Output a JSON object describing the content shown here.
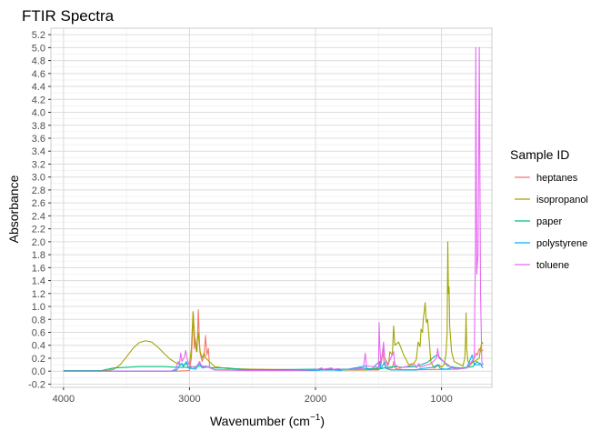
{
  "chart_data": {
    "type": "line",
    "title": "FTIR Spectra",
    "xlabel_main": "Wavenumber (cm",
    "xlabel_sup": "−1",
    "xlabel_close": ")",
    "ylabel": "Absorbance",
    "x_reversed": true,
    "xlim": [
      4100,
      600
    ],
    "ylim": [
      -0.25,
      5.3
    ],
    "x_ticks": [
      4000,
      3000,
      2000,
      1000
    ],
    "x_tick_labels": [
      "4000",
      "3000",
      "2000",
      "1000"
    ],
    "y_ticks": [
      -0.2,
      0.0,
      0.2,
      0.4,
      0.6,
      0.8,
      1.0,
      1.2,
      1.4,
      1.6,
      1.8,
      2.0,
      2.2,
      2.4,
      2.6,
      2.8,
      3.0,
      3.2,
      3.4,
      3.6,
      3.8,
      4.0,
      4.2,
      4.4,
      4.6,
      4.8,
      5.0,
      5.2
    ],
    "y_tick_labels": [
      "-0.2",
      "0.0",
      "0.2",
      "0.4",
      "0.6",
      "0.8",
      "1.0",
      "1.2",
      "1.4",
      "1.6",
      "1.8",
      "2.0",
      "2.2",
      "2.4",
      "2.6",
      "2.8",
      "3.0",
      "3.2",
      "3.4",
      "3.6",
      "3.8",
      "4.0",
      "4.2",
      "4.4",
      "4.6",
      "4.8",
      "5.0",
      "5.2"
    ],
    "grid": true,
    "legend_title": "Sample ID",
    "legend_position": "right",
    "series": [
      {
        "name": "heptanes",
        "color": "#F8766D",
        "points": [
          [
            4000,
            0.0
          ],
          [
            3100,
            0.0
          ],
          [
            3000,
            0.01
          ],
          [
            2985,
            0.2
          ],
          [
            2970,
            0.9
          ],
          [
            2962,
            0.35
          ],
          [
            2955,
            0.5
          ],
          [
            2940,
            0.3
          ],
          [
            2930,
            0.95
          ],
          [
            2918,
            0.3
          ],
          [
            2900,
            0.15
          ],
          [
            2885,
            0.22
          ],
          [
            2873,
            0.55
          ],
          [
            2862,
            0.25
          ],
          [
            2850,
            0.35
          ],
          [
            2840,
            0.05
          ],
          [
            2800,
            0.02
          ],
          [
            1500,
            0.02
          ],
          [
            1480,
            0.1
          ],
          [
            1466,
            0.3
          ],
          [
            1455,
            0.12
          ],
          [
            1440,
            0.04
          ],
          [
            1390,
            0.05
          ],
          [
            1378,
            0.15
          ],
          [
            1365,
            0.04
          ],
          [
            1300,
            0.02
          ],
          [
            900,
            0.03
          ],
          [
            800,
            0.05
          ],
          [
            780,
            0.08
          ],
          [
            760,
            0.12
          ],
          [
            740,
            0.2
          ],
          [
            725,
            0.28
          ],
          [
            715,
            0.25
          ],
          [
            700,
            0.35
          ],
          [
            690,
            0.3
          ],
          [
            670,
            0.33
          ]
        ]
      },
      {
        "name": "isopropanol",
        "color": "#A3A500",
        "points": [
          [
            4000,
            0.01
          ],
          [
            3650,
            0.01
          ],
          [
            3600,
            0.03
          ],
          [
            3550,
            0.1
          ],
          [
            3500,
            0.22
          ],
          [
            3450,
            0.35
          ],
          [
            3400,
            0.44
          ],
          [
            3350,
            0.47
          ],
          [
            3300,
            0.45
          ],
          [
            3250,
            0.37
          ],
          [
            3200,
            0.27
          ],
          [
            3150,
            0.18
          ],
          [
            3100,
            0.12
          ],
          [
            3050,
            0.1
          ],
          [
            3000,
            0.12
          ],
          [
            2985,
            0.35
          ],
          [
            2972,
            0.92
          ],
          [
            2960,
            0.55
          ],
          [
            2945,
            0.3
          ],
          [
            2932,
            0.6
          ],
          [
            2915,
            0.3
          ],
          [
            2900,
            0.2
          ],
          [
            2885,
            0.28
          ],
          [
            2870,
            0.2
          ],
          [
            2800,
            0.07
          ],
          [
            2700,
            0.04
          ],
          [
            2500,
            0.03
          ],
          [
            2000,
            0.02
          ],
          [
            1600,
            0.02
          ],
          [
            1500,
            0.05
          ],
          [
            1470,
            0.25
          ],
          [
            1460,
            0.35
          ],
          [
            1450,
            0.2
          ],
          [
            1420,
            0.1
          ],
          [
            1410,
            0.3
          ],
          [
            1390,
            0.25
          ],
          [
            1380,
            0.7
          ],
          [
            1370,
            0.4
          ],
          [
            1340,
            0.45
          ],
          [
            1320,
            0.35
          ],
          [
            1300,
            0.25
          ],
          [
            1260,
            0.1
          ],
          [
            1220,
            0.12
          ],
          [
            1200,
            0.18
          ],
          [
            1185,
            0.45
          ],
          [
            1170,
            0.38
          ],
          [
            1162,
            0.65
          ],
          [
            1150,
            0.6
          ],
          [
            1145,
            0.8
          ],
          [
            1135,
            0.95
          ],
          [
            1130,
            1.06
          ],
          [
            1120,
            0.75
          ],
          [
            1110,
            0.8
          ],
          [
            1100,
            0.55
          ],
          [
            1085,
            0.15
          ],
          [
            1060,
            0.05
          ],
          [
            1040,
            0.07
          ],
          [
            1020,
            0.1
          ],
          [
            1000,
            0.06
          ],
          [
            980,
            0.1
          ],
          [
            965,
            0.25
          ],
          [
            955,
            0.6
          ],
          [
            950,
            2.0
          ],
          [
            945,
            1.2
          ],
          [
            940,
            1.3
          ],
          [
            935,
            0.7
          ],
          [
            920,
            0.3
          ],
          [
            900,
            0.15
          ],
          [
            870,
            0.12
          ],
          [
            850,
            0.1
          ],
          [
            830,
            0.08
          ],
          [
            815,
            0.2
          ],
          [
            808,
            0.55
          ],
          [
            805,
            0.9
          ],
          [
            800,
            0.35
          ],
          [
            790,
            0.15
          ],
          [
            770,
            0.12
          ],
          [
            740,
            0.15
          ],
          [
            700,
            0.2
          ],
          [
            690,
            0.35
          ],
          [
            680,
            0.45
          ],
          [
            670,
            0.42
          ]
        ]
      },
      {
        "name": "paper",
        "color": "#00BF7D",
        "points": [
          [
            4000,
            0.01
          ],
          [
            3700,
            0.01
          ],
          [
            3650,
            0.03
          ],
          [
            3600,
            0.05
          ],
          [
            3500,
            0.06
          ],
          [
            3400,
            0.07
          ],
          [
            3300,
            0.07
          ],
          [
            3200,
            0.07
          ],
          [
            3100,
            0.06
          ],
          [
            3000,
            0.06
          ],
          [
            2950,
            0.07
          ],
          [
            2900,
            0.08
          ],
          [
            2850,
            0.06
          ],
          [
            2800,
            0.05
          ],
          [
            2700,
            0.05
          ],
          [
            2600,
            0.03
          ],
          [
            2500,
            0.02
          ],
          [
            2000,
            0.03
          ],
          [
            1700,
            0.03
          ],
          [
            1640,
            0.05
          ],
          [
            1600,
            0.04
          ],
          [
            1500,
            0.03
          ],
          [
            1430,
            0.06
          ],
          [
            1370,
            0.07
          ],
          [
            1320,
            0.06
          ],
          [
            1200,
            0.07
          ],
          [
            1160,
            0.1
          ],
          [
            1110,
            0.14
          ],
          [
            1060,
            0.22
          ],
          [
            1030,
            0.25
          ],
          [
            1000,
            0.18
          ],
          [
            950,
            0.08
          ],
          [
            900,
            0.06
          ],
          [
            850,
            0.05
          ],
          [
            800,
            0.06
          ],
          [
            750,
            0.07
          ],
          [
            720,
            0.15
          ],
          [
            700,
            0.12
          ],
          [
            680,
            0.1
          ],
          [
            670,
            0.1
          ]
        ]
      },
      {
        "name": "polystyrene",
        "color": "#00B0F6",
        "points": [
          [
            4000,
            0.0
          ],
          [
            3150,
            0.0
          ],
          [
            3100,
            0.02
          ],
          [
            3082,
            0.08
          ],
          [
            3060,
            0.12
          ],
          [
            3050,
            0.07
          ],
          [
            3025,
            0.15
          ],
          [
            3010,
            0.05
          ],
          [
            2950,
            0.03
          ],
          [
            2923,
            0.12
          ],
          [
            2900,
            0.05
          ],
          [
            2850,
            0.07
          ],
          [
            2800,
            0.02
          ],
          [
            2500,
            0.01
          ],
          [
            2000,
            0.01
          ],
          [
            1950,
            0.02
          ],
          [
            1870,
            0.02
          ],
          [
            1800,
            0.01
          ],
          [
            1601,
            0.08
          ],
          [
            1590,
            0.03
          ],
          [
            1583,
            0.04
          ],
          [
            1560,
            0.02
          ],
          [
            1493,
            0.15
          ],
          [
            1480,
            0.04
          ],
          [
            1452,
            0.14
          ],
          [
            1440,
            0.04
          ],
          [
            1400,
            0.02
          ],
          [
            1370,
            0.02
          ],
          [
            1300,
            0.02
          ],
          [
            1200,
            0.02
          ],
          [
            1180,
            0.03
          ],
          [
            1155,
            0.04
          ],
          [
            1070,
            0.06
          ],
          [
            1028,
            0.1
          ],
          [
            1010,
            0.04
          ],
          [
            960,
            0.03
          ],
          [
            907,
            0.06
          ],
          [
            880,
            0.03
          ],
          [
            840,
            0.04
          ],
          [
            800,
            0.05
          ],
          [
            757,
            0.25
          ],
          [
            740,
            0.1
          ],
          [
            725,
            0.1
          ],
          [
            698,
            0.1
          ],
          [
            690,
            0.12
          ],
          [
            680,
            0.07
          ],
          [
            670,
            0.05
          ]
        ]
      },
      {
        "name": "toluene",
        "color": "#E76BF3",
        "points": [
          [
            4000,
            0.0
          ],
          [
            3150,
            0.0
          ],
          [
            3110,
            0.03
          ],
          [
            3090,
            0.15
          ],
          [
            3080,
            0.1
          ],
          [
            3070,
            0.28
          ],
          [
            3060,
            0.15
          ],
          [
            3040,
            0.22
          ],
          [
            3030,
            0.32
          ],
          [
            3020,
            0.2
          ],
          [
            3000,
            0.08
          ],
          [
            2950,
            0.05
          ],
          [
            2920,
            0.15
          ],
          [
            2900,
            0.06
          ],
          [
            2870,
            0.08
          ],
          [
            2800,
            0.02
          ],
          [
            2500,
            0.01
          ],
          [
            2200,
            0.01
          ],
          [
            2000,
            0.02
          ],
          [
            1950,
            0.05
          ],
          [
            1940,
            0.03
          ],
          [
            1870,
            0.05
          ],
          [
            1860,
            0.03
          ],
          [
            1810,
            0.04
          ],
          [
            1800,
            0.02
          ],
          [
            1620,
            0.04
          ],
          [
            1605,
            0.28
          ],
          [
            1595,
            0.08
          ],
          [
            1500,
            0.06
          ],
          [
            1495,
            0.75
          ],
          [
            1490,
            0.4
          ],
          [
            1480,
            0.1
          ],
          [
            1460,
            0.45
          ],
          [
            1450,
            0.2
          ],
          [
            1430,
            0.08
          ],
          [
            1380,
            0.3
          ],
          [
            1370,
            0.1
          ],
          [
            1330,
            0.05
          ],
          [
            1210,
            0.1
          ],
          [
            1200,
            0.05
          ],
          [
            1180,
            0.12
          ],
          [
            1170,
            0.06
          ],
          [
            1110,
            0.1
          ],
          [
            1080,
            0.12
          ],
          [
            1040,
            0.2
          ],
          [
            1030,
            0.35
          ],
          [
            1020,
            0.2
          ],
          [
            900,
            0.03
          ],
          [
            800,
            0.05
          ],
          [
            740,
            0.2
          ],
          [
            730,
            2.0
          ],
          [
            728,
            5.0
          ],
          [
            725,
            3.9
          ],
          [
            720,
            1.5
          ],
          [
            710,
            1.8
          ],
          [
            705,
            3.2
          ],
          [
            700,
            5.0
          ],
          [
            695,
            3.0
          ],
          [
            690,
            1.2
          ],
          [
            680,
            0.15
          ],
          [
            670,
            0.1
          ]
        ]
      }
    ]
  }
}
